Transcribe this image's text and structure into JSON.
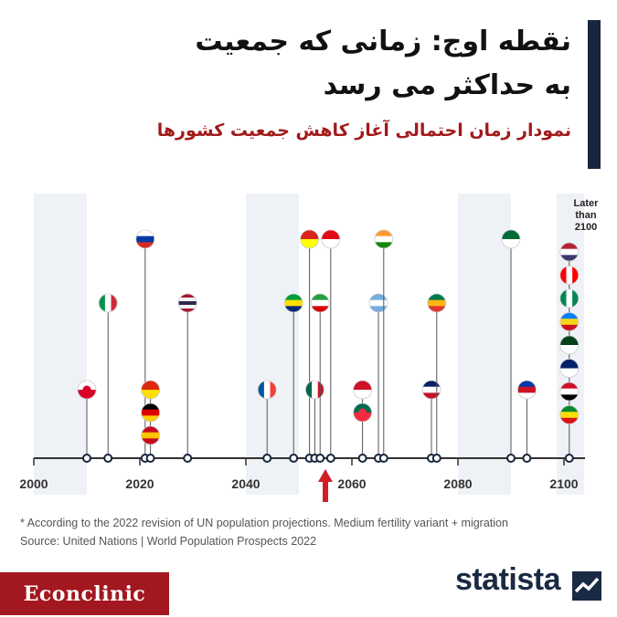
{
  "header": {
    "title_line1": "نقطه اوج: زمانی که جمعیت",
    "title_line2": "به حداکثر می رسد",
    "subtitle": "نمودار زمان احتمالی آغاز کاهش جمعیت کشورها"
  },
  "chart_data": {
    "type": "timeline",
    "x_ticks": [
      "2000",
      "2020",
      "2040",
      "2060",
      "2080",
      "2100"
    ],
    "xlim": [
      1998,
      2104
    ],
    "later_label": "Later than 2100",
    "annotation": "arrow marks the present",
    "points": [
      {
        "country": "Japan",
        "year": 2010,
        "row": 3
      },
      {
        "country": "Italy",
        "year": 2014,
        "row": 2
      },
      {
        "country": "Russia",
        "year": 2021,
        "row": 1
      },
      {
        "country": "China",
        "year": 2022,
        "row": 3
      },
      {
        "country": "Germany",
        "year": 2022,
        "row": 4
      },
      {
        "country": "Spain",
        "year": 2022,
        "row": 5
      },
      {
        "country": "Thailand",
        "year": 2029,
        "row": 2
      },
      {
        "country": "France",
        "year": 2044,
        "row": 3
      },
      {
        "country": "Brazil",
        "year": 2049,
        "row": 2
      },
      {
        "country": "Vietnam",
        "year": 2052,
        "row": 1
      },
      {
        "country": "Mexico",
        "year": 2053,
        "row": 3
      },
      {
        "country": "Iran",
        "year": 2054,
        "row": 2
      },
      {
        "country": "Turkey",
        "year": 2056,
        "row": 1
      },
      {
        "country": "Indonesia",
        "year": 2062,
        "row": 3
      },
      {
        "country": "Bangladesh",
        "year": 2062,
        "row": 4
      },
      {
        "country": "Argentina",
        "year": 2065,
        "row": 2
      },
      {
        "country": "India",
        "year": 2066,
        "row": 1
      },
      {
        "country": "UK",
        "year": 2075,
        "row": 3
      },
      {
        "country": "South Africa",
        "year": 2076,
        "row": 2
      },
      {
        "country": "Saudi Arabia",
        "year": 2090,
        "row": 1
      },
      {
        "country": "Philippines",
        "year": 2093,
        "row": 3
      }
    ],
    "later_than_2100": [
      "USA",
      "Canada",
      "Nigeria",
      "DR Congo",
      "Pakistan",
      "Australia",
      "Egypt",
      "Ethiopia"
    ]
  },
  "footnote": "* According to the 2022 revision of UN population projections. Medium fertility variant + migration",
  "source": "Source: United Nations | World Population Prospects 2022",
  "branding": {
    "left": "Econclinic",
    "right": "statista"
  },
  "colors": {
    "title": "#111111",
    "subtitle": "#a11a1a",
    "band": "#eef2f6",
    "axis": "#333333",
    "dot": "#17263c",
    "arrow": "#d11f2a"
  }
}
